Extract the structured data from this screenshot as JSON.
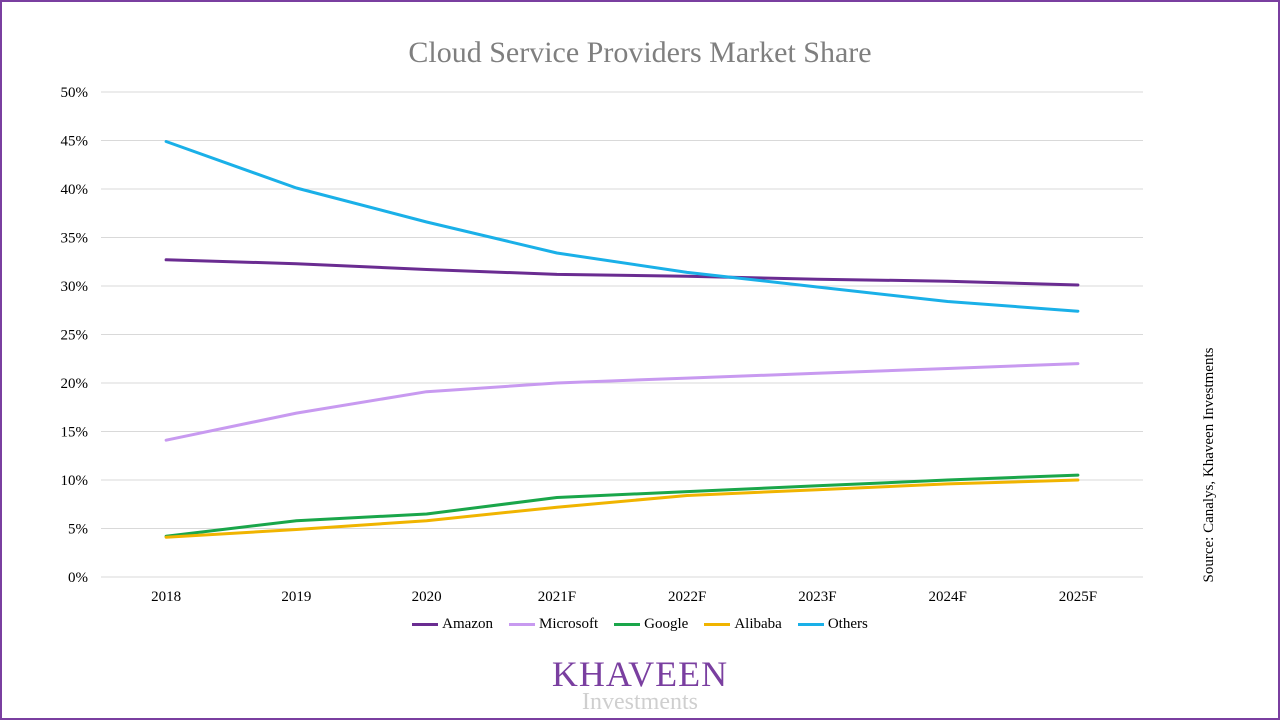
{
  "chart_data": {
    "type": "line",
    "title": "Cloud Service Providers Market Share",
    "categories": [
      "2018",
      "2019",
      "2020",
      "2021F",
      "2022F",
      "2023F",
      "2024F",
      "2025F"
    ],
    "y_ticks": [
      "0%",
      "5%",
      "10%",
      "15%",
      "20%",
      "25%",
      "30%",
      "35%",
      "40%",
      "45%",
      "50%"
    ],
    "ylim": [
      0,
      50
    ],
    "grid": true,
    "legend_position": "bottom",
    "series": [
      {
        "name": "Amazon",
        "color": "#6a2c91",
        "values": [
          32.7,
          32.3,
          31.7,
          31.2,
          31.0,
          30.7,
          30.5,
          30.1
        ]
      },
      {
        "name": "Microsoft",
        "color": "#c89af0",
        "values": [
          14.1,
          16.9,
          19.1,
          20.0,
          20.5,
          21.0,
          21.5,
          22.0
        ]
      },
      {
        "name": "Google",
        "color": "#1aa64a",
        "values": [
          4.2,
          5.8,
          6.5,
          8.2,
          8.8,
          9.4,
          10.0,
          10.5
        ]
      },
      {
        "name": "Alibaba",
        "color": "#f0b400",
        "values": [
          4.1,
          4.9,
          5.8,
          7.2,
          8.4,
          9.0,
          9.6,
          10.0
        ]
      },
      {
        "name": "Others",
        "color": "#1ab0e8",
        "values": [
          44.9,
          40.1,
          36.6,
          33.4,
          31.4,
          29.9,
          28.4,
          27.4
        ]
      }
    ]
  },
  "source": "Source: Canalys, Khaveen Investments",
  "logo": {
    "main": "KHAVEEN",
    "sub": "Investments"
  }
}
